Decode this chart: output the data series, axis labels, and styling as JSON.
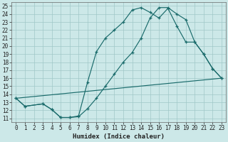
{
  "bg_color": "#cce8e8",
  "grid_color": "#a0c8c8",
  "line_color": "#1a6b6b",
  "xlabel": "Humidex (Indice chaleur)",
  "xlim": [
    -0.5,
    23.5
  ],
  "ylim": [
    10.5,
    25.5
  ],
  "xticks": [
    0,
    1,
    2,
    3,
    4,
    5,
    6,
    7,
    8,
    9,
    10,
    11,
    12,
    13,
    14,
    15,
    16,
    17,
    18,
    19,
    20,
    21,
    22,
    23
  ],
  "yticks": [
    11,
    12,
    13,
    14,
    15,
    16,
    17,
    18,
    19,
    20,
    21,
    22,
    23,
    24,
    25
  ],
  "curve1_x": [
    0,
    1,
    3,
    4,
    5,
    6,
    7,
    8,
    9,
    10,
    11,
    12,
    13,
    14,
    15,
    16,
    17,
    18,
    19,
    20,
    21,
    22,
    23
  ],
  "curve1_y": [
    13.5,
    12.5,
    12.8,
    12.1,
    11.1,
    11.1,
    11.2,
    12.2,
    13.5,
    15.0,
    16.5,
    18.0,
    19.2,
    21.0,
    23.5,
    24.8,
    24.8,
    24.0,
    23.3,
    20.5,
    19.0,
    17.2,
    16.0
  ],
  "curve2_x": [
    0,
    1,
    3,
    4,
    5,
    6,
    7,
    8,
    9,
    10,
    11,
    12,
    13,
    14,
    15,
    16,
    17,
    18,
    19,
    20,
    21,
    22,
    23
  ],
  "curve2_y": [
    13.5,
    12.5,
    12.8,
    12.1,
    11.1,
    11.1,
    11.3,
    15.5,
    19.3,
    21.0,
    22.0,
    23.0,
    24.5,
    24.8,
    24.2,
    23.5,
    24.7,
    22.5,
    20.5,
    20.5,
    19.0,
    17.2,
    16.0
  ],
  "curve3_x": [
    0,
    23
  ],
  "curve3_y": [
    13.5,
    16.0
  ],
  "tick_fontsize": 5.5,
  "xlabel_fontsize": 6.5
}
